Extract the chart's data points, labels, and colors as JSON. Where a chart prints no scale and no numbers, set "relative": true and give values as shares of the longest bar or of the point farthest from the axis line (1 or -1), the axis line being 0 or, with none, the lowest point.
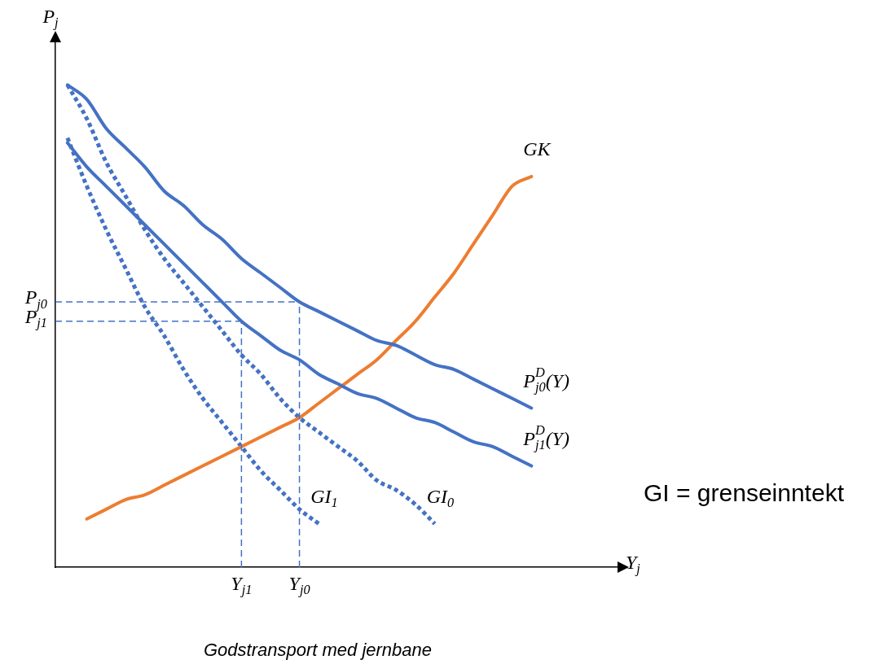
{
  "chart_data": {
    "type": "line",
    "relative": true,
    "xlabel": "Y$_{j}$",
    "ylabel": "P$_{j}$",
    "categories": [
      null,
      null,
      null,
      null,
      null,
      null,
      null,
      null,
      null,
      "Y$_{j1}$",
      null,
      null,
      "Y$_{j0}$",
      null,
      null,
      null,
      null,
      null,
      null,
      null,
      null,
      null,
      null,
      null,
      null
    ],
    "series": [
      {
        "name": "P$_{j0}$$^{D}$(Y)",
        "color": "#4472c4",
        "line_style": "solid",
        "values": [
          1.0,
          0.97,
          0.91,
          0.87,
          0.83,
          0.78,
          0.75,
          0.71,
          0.68,
          0.64,
          0.61,
          0.58,
          0.55,
          0.53,
          0.51,
          0.49,
          0.47,
          0.46,
          0.44,
          0.42,
          0.41,
          0.39,
          0.37,
          0.35,
          0.33
        ]
      },
      {
        "name": "P$_{j1}$$^{D}$(Y)",
        "color": "#4472c4",
        "line_style": "solid",
        "values": [
          0.88,
          0.83,
          0.79,
          0.75,
          0.71,
          0.67,
          0.63,
          0.59,
          0.55,
          0.51,
          0.48,
          0.45,
          0.43,
          0.4,
          0.38,
          0.36,
          0.35,
          0.33,
          0.31,
          0.3,
          0.28,
          0.26,
          0.25,
          0.23,
          0.21
        ]
      },
      {
        "name": "GK",
        "color": "#ed7d31",
        "line_style": "solid",
        "values": [
          null,
          0.1,
          0.12,
          0.14,
          0.15,
          0.17,
          0.19,
          0.21,
          0.23,
          0.25,
          0.27,
          0.29,
          0.31,
          0.34,
          0.37,
          0.4,
          0.43,
          0.47,
          0.51,
          0.56,
          0.61,
          0.67,
          0.73,
          0.79,
          0.81
        ]
      },
      {
        "name": "GI$_{0}$",
        "color": "#4472c4",
        "line_style": "dotted",
        "values": [
          1.0,
          0.93,
          0.84,
          0.77,
          0.7,
          0.64,
          0.59,
          0.54,
          0.49,
          0.44,
          0.4,
          0.35,
          0.31,
          0.28,
          0.25,
          0.22,
          0.18,
          0.16,
          0.13,
          0.09,
          null,
          null,
          null,
          null,
          null
        ]
      },
      {
        "name": "GI$_{1}$",
        "color": "#4472c4",
        "line_style": "dotted",
        "values": [
          0.89,
          0.79,
          0.7,
          0.62,
          0.54,
          0.48,
          0.41,
          0.35,
          0.3,
          0.25,
          0.2,
          0.16,
          0.12,
          0.09,
          null,
          null,
          null,
          null,
          null,
          null,
          null,
          null,
          null,
          null,
          null
        ]
      }
    ],
    "ref_lines": [
      {
        "axis": "y",
        "value": 0.55,
        "label": "P$_{j0}$",
        "color": "#4472c4",
        "line_style": "dashed"
      },
      {
        "axis": "y",
        "value": 0.51,
        "label": "P$_{j1}$",
        "color": "#4472c4",
        "line_style": "dashed"
      },
      {
        "axis": "x",
        "value": "Y$_{j0}$",
        "color": "#4472c4",
        "line_style": "dashed"
      },
      {
        "axis": "x",
        "value": "Y$_{j1}$",
        "color": "#4472c4",
        "line_style": "dashed"
      }
    ],
    "marker": "none",
    "grid": false,
    "legend": false,
    "annotations": [
      "GI = grenseinntekt",
      "Godstransport med jernbane"
    ]
  }
}
